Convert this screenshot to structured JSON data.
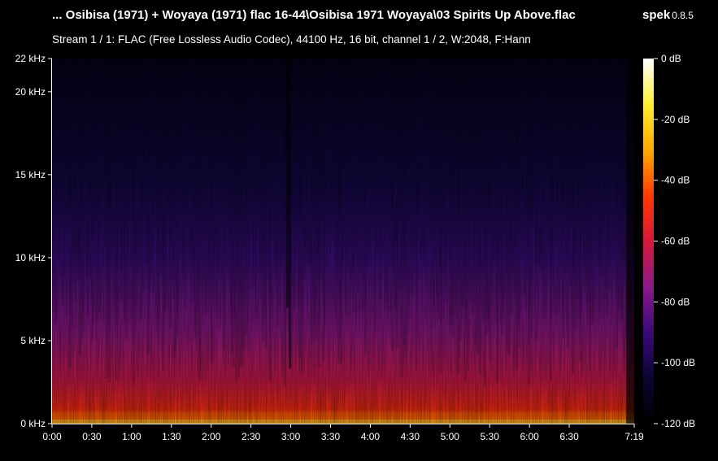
{
  "window": {
    "file_title": "... Osibisa (1971) + Woyaya (1971) flac 16-44\\Osibisa 1971 Woyaya\\03 Spirits Up Above.flac",
    "app_name": "spek",
    "app_version": "0.8.5"
  },
  "stream_info": "Stream 1 / 1: FLAC (Free Lossless Audio Codec), 44100 Hz, 16 bit, channel 1 / 2, W:2048, F:Hann",
  "chart_data": {
    "type": "heatmap",
    "title": "",
    "xlabel": "",
    "ylabel": "",
    "x_unit": "time (m:ss)",
    "xlim_seconds": [
      0,
      439
    ],
    "x_ticks": [
      {
        "label": "0:00",
        "seconds": 0
      },
      {
        "label": "0:30",
        "seconds": 30
      },
      {
        "label": "1:00",
        "seconds": 60
      },
      {
        "label": "1:30",
        "seconds": 90
      },
      {
        "label": "2:00",
        "seconds": 120
      },
      {
        "label": "2:30",
        "seconds": 150
      },
      {
        "label": "3:00",
        "seconds": 180
      },
      {
        "label": "3:30",
        "seconds": 210
      },
      {
        "label": "4:00",
        "seconds": 240
      },
      {
        "label": "4:30",
        "seconds": 270
      },
      {
        "label": "5:00",
        "seconds": 300
      },
      {
        "label": "5:30",
        "seconds": 330
      },
      {
        "label": "6:00",
        "seconds": 360
      },
      {
        "label": "6:30",
        "seconds": 390
      },
      {
        "label": "7:19",
        "seconds": 439
      }
    ],
    "ylim_khz": [
      0,
      22
    ],
    "y_ticks": [
      {
        "label": "0 kHz",
        "khz": 0
      },
      {
        "label": "5 kHz",
        "khz": 5
      },
      {
        "label": "10 kHz",
        "khz": 10
      },
      {
        "label": "15 kHz",
        "khz": 15
      },
      {
        "label": "20 kHz",
        "khz": 20
      },
      {
        "label": "22 kHz",
        "khz": 22
      }
    ],
    "colorbar": {
      "range_db": [
        -120,
        0
      ],
      "ticks": [
        {
          "label": "0 dB",
          "db": 0
        },
        {
          "label": "-20 dB",
          "db": -20
        },
        {
          "label": "-40 dB",
          "db": -40
        },
        {
          "label": "-60 dB",
          "db": -60
        },
        {
          "label": "-80 dB",
          "db": -80
        },
        {
          "label": "-100 dB",
          "db": -100
        },
        {
          "label": "-120 dB",
          "db": -120
        }
      ],
      "colors": [
        "#000000",
        "#0b0533",
        "#3a0a7a",
        "#8a1a8a",
        "#d8183a",
        "#ff3a00",
        "#ffaa00",
        "#ffee33",
        "#ffffff"
      ]
    }
  }
}
